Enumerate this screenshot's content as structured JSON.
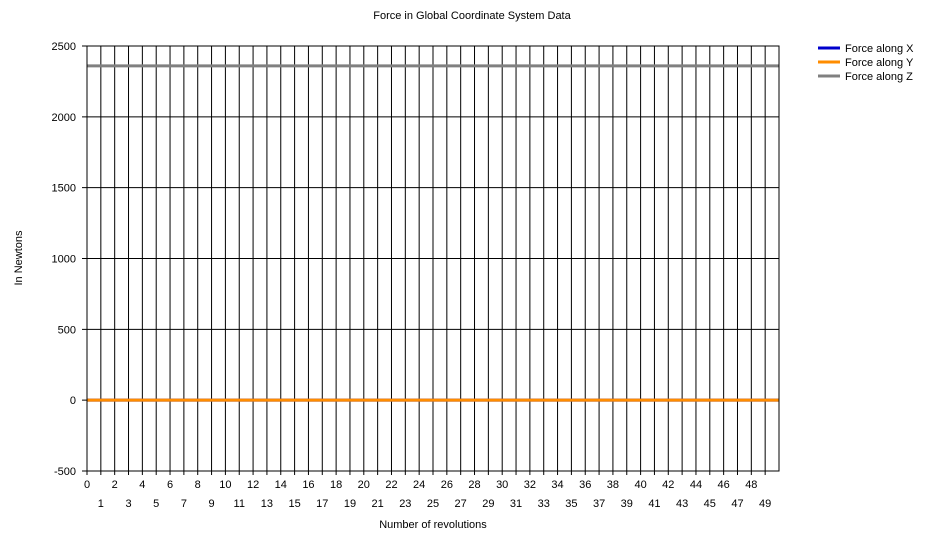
{
  "chart_data": {
    "type": "line",
    "title": "Force in Global Coordinate System Data",
    "xlabel": "Number of revolutions",
    "ylabel": "In Newtons",
    "xlim": [
      0,
      50
    ],
    "ylim": [
      -500,
      2500
    ],
    "yticks": [
      -500,
      0,
      500,
      1000,
      1500,
      2000,
      2500
    ],
    "xticks": [
      0,
      1,
      2,
      3,
      4,
      5,
      6,
      7,
      8,
      9,
      10,
      11,
      12,
      13,
      14,
      15,
      16,
      17,
      18,
      19,
      20,
      21,
      22,
      23,
      24,
      25,
      26,
      27,
      28,
      29,
      30,
      31,
      32,
      33,
      34,
      35,
      36,
      37,
      38,
      39,
      40,
      41,
      42,
      43,
      44,
      45,
      46,
      47,
      48,
      49
    ],
    "grid": true,
    "legend_position": "top-right",
    "x": [
      0,
      1,
      2,
      3,
      4,
      5,
      6,
      7,
      8,
      9,
      10,
      11,
      12,
      13,
      14,
      15,
      16,
      17,
      18,
      19,
      20,
      21,
      22,
      23,
      24,
      25,
      26,
      27,
      28,
      29,
      30,
      31,
      32,
      33,
      34,
      35,
      36,
      37,
      38,
      39,
      40,
      41,
      42,
      43,
      44,
      45,
      46,
      47,
      48,
      49,
      50
    ],
    "series": [
      {
        "name": "Force along X",
        "color": "#0000cd",
        "values": [
          0,
          0,
          0,
          0,
          0,
          0,
          0,
          0,
          0,
          0,
          0,
          0,
          0,
          0,
          0,
          0,
          0,
          0,
          0,
          0,
          0,
          0,
          0,
          0,
          0,
          0,
          0,
          0,
          0,
          0,
          0,
          0,
          0,
          0,
          0,
          0,
          0,
          0,
          0,
          0,
          0,
          0,
          0,
          0,
          0,
          0,
          0,
          0,
          0,
          0,
          0
        ]
      },
      {
        "name": "Force along Y",
        "color": "#ff8c00",
        "values": [
          0,
          0,
          0,
          0,
          0,
          0,
          0,
          0,
          0,
          0,
          0,
          0,
          0,
          0,
          0,
          0,
          0,
          0,
          0,
          0,
          0,
          0,
          0,
          0,
          0,
          0,
          0,
          0,
          0,
          0,
          0,
          0,
          0,
          0,
          0,
          0,
          0,
          0,
          0,
          0,
          0,
          0,
          0,
          0,
          0,
          0,
          0,
          0,
          0,
          0,
          0
        ]
      },
      {
        "name": "Force along Z",
        "color": "#808080",
        "values": [
          2360,
          2360,
          2360,
          2360,
          2360,
          2360,
          2360,
          2360,
          2360,
          2360,
          2360,
          2360,
          2360,
          2360,
          2360,
          2360,
          2360,
          2360,
          2360,
          2360,
          2360,
          2360,
          2360,
          2360,
          2360,
          2360,
          2360,
          2360,
          2360,
          2360,
          2360,
          2360,
          2360,
          2360,
          2360,
          2360,
          2360,
          2360,
          2360,
          2360,
          2360,
          2360,
          2360,
          2360,
          2360,
          2360,
          2360,
          2360,
          2360,
          2360,
          2360
        ]
      }
    ]
  }
}
